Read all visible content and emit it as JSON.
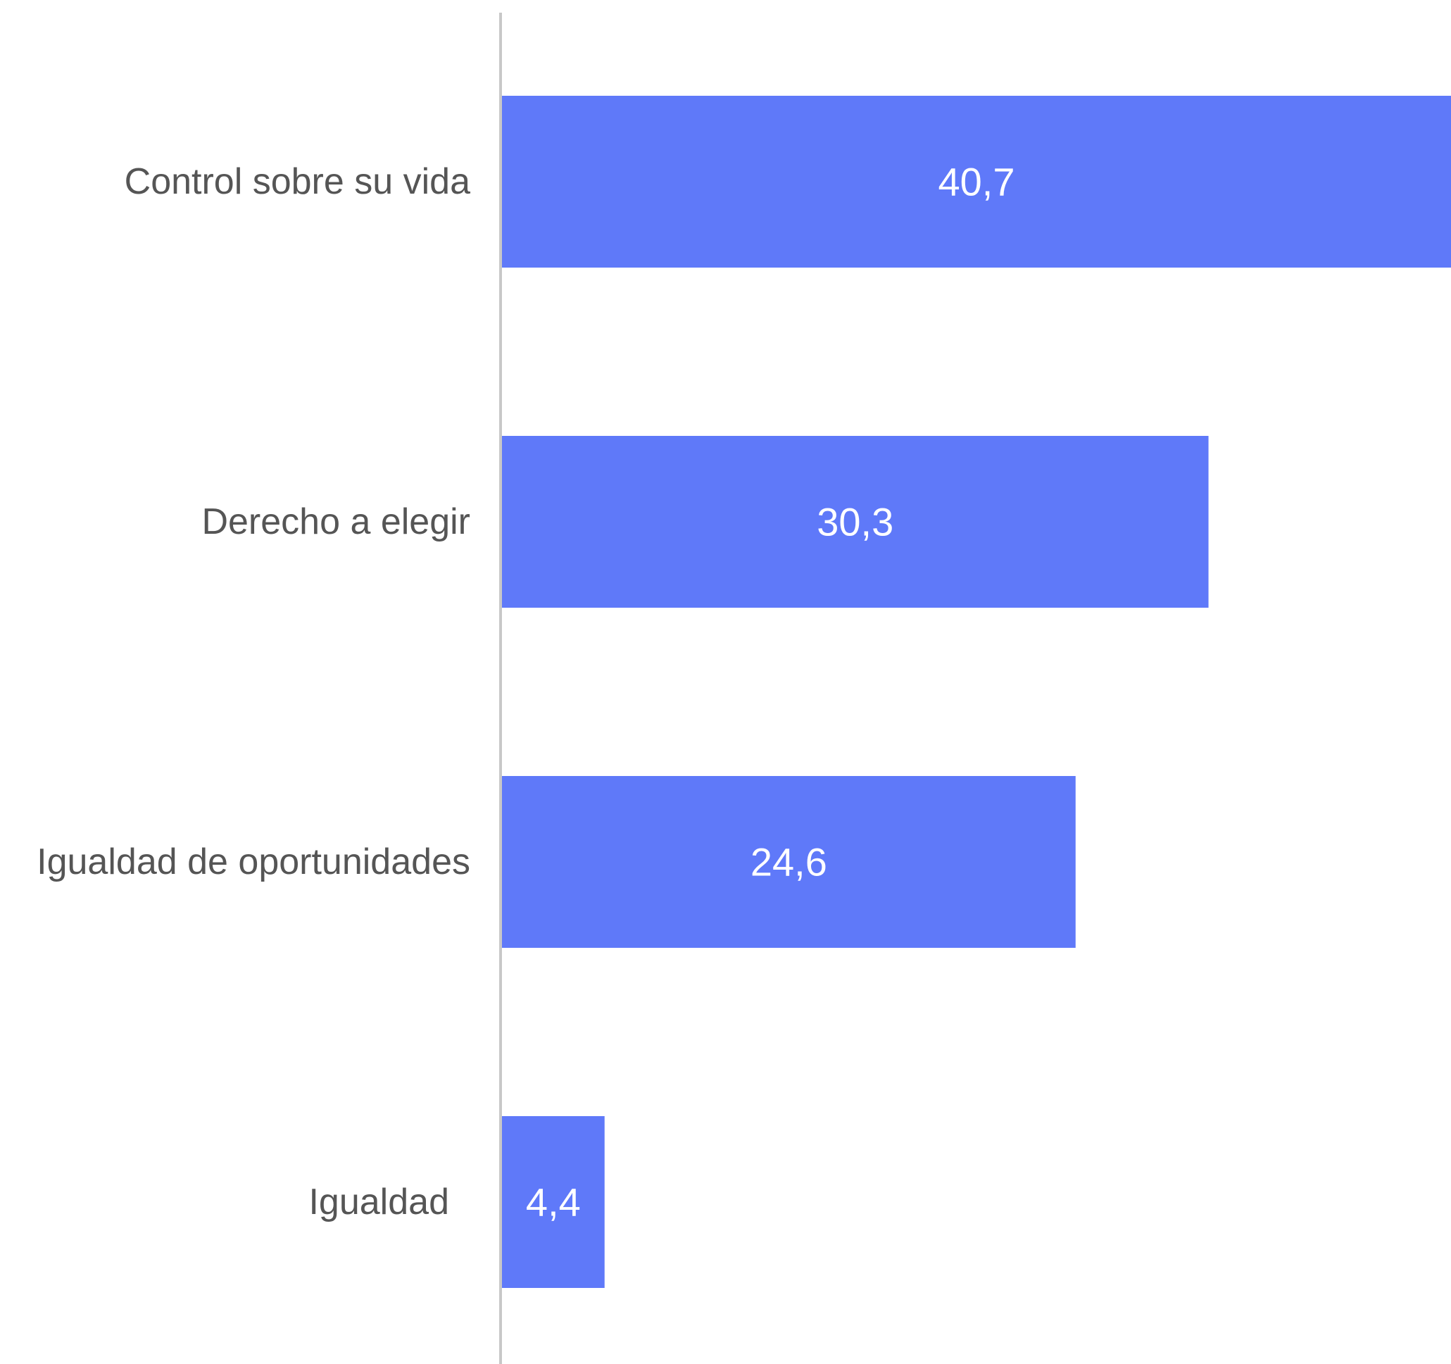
{
  "chart_data": {
    "type": "bar",
    "orientation": "horizontal",
    "title": "",
    "xlabel": "",
    "ylabel": "",
    "categories": [
      "Control sobre su vida",
      "Derecho a elegir",
      "Igualdad de oportunidades",
      "Igualdad"
    ],
    "values": [
      40.7,
      30.3,
      24.6,
      4.4
    ],
    "data_labels": [
      "40,7",
      "30,3",
      "24,6",
      "4,4"
    ],
    "xlim": [
      0,
      40.7
    ],
    "grid": false,
    "legend": "none",
    "colors": {
      "bar": "#5f79f9",
      "axis": "#c8c8c8",
      "category_text": "#555555",
      "value_text": "#ffffff"
    }
  }
}
